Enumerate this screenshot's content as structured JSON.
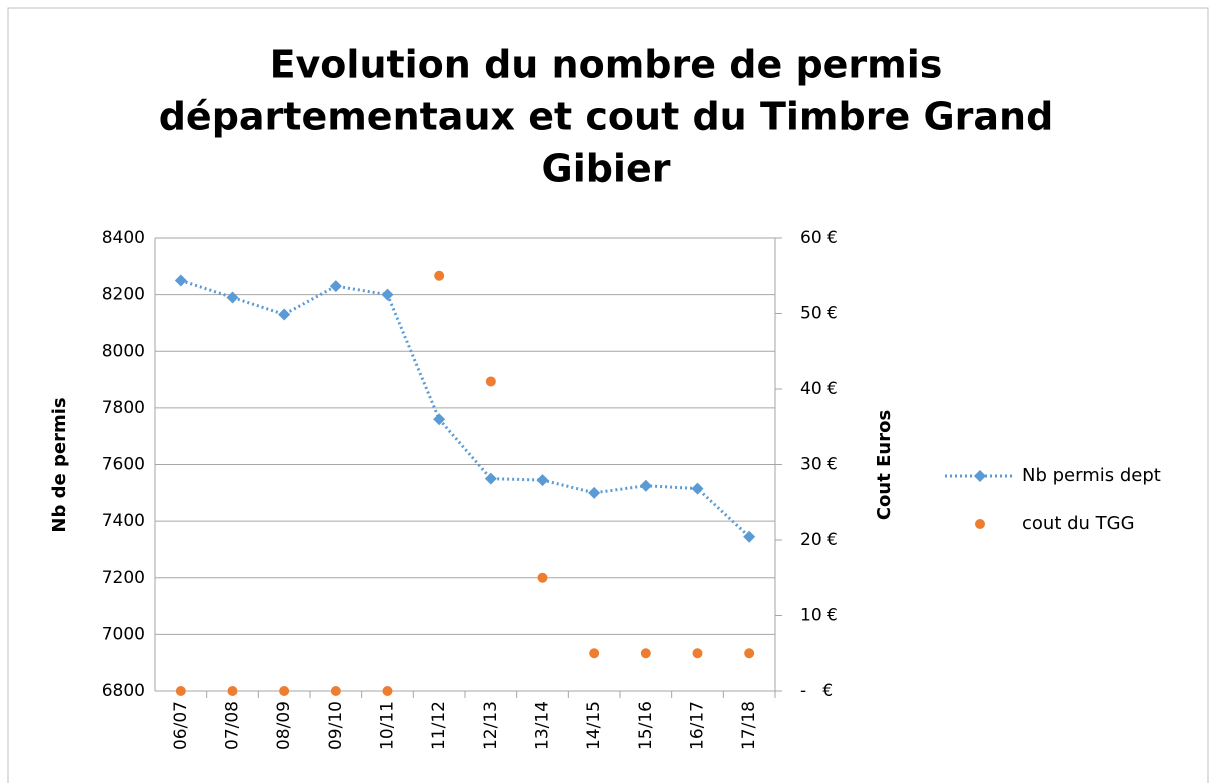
{
  "chart_data": {
    "type": "line",
    "title": [
      "Evolution du nombre de permis",
      "départementaux et cout du Timbre Grand",
      "Gibier"
    ],
    "ylabel": "Nb de permis",
    "y2label": "Cout Euros",
    "categories": [
      "06/07",
      "07/08",
      "08/09",
      "09/10",
      "10/11",
      "11/12",
      "12/13",
      "13/14",
      "14/15",
      "15/16",
      "16/17",
      "17/18"
    ],
    "series": [
      {
        "name": "Nb permis dept",
        "color": "#5b9bd5",
        "style": "dotted-line-diamond",
        "values": [
          8250,
          8190,
          8130,
          8230,
          8200,
          7760,
          7550,
          7545,
          7500,
          7525,
          7515,
          7345
        ]
      },
      {
        "name": "cout du TGG",
        "color": "#ed7d31",
        "style": "markers",
        "axis": "y2",
        "values": [
          0,
          0,
          0,
          0,
          0,
          55,
          41,
          15,
          5,
          5,
          5,
          5
        ]
      }
    ],
    "ylim": [
      6800,
      8400
    ],
    "yticks": [
      6800,
      7000,
      7200,
      7400,
      7600,
      7800,
      8000,
      8200,
      8400
    ],
    "y2lim": [
      0,
      60
    ],
    "y2ticks": [
      {
        "value": 0,
        "label": "-   €"
      },
      {
        "value": 10,
        "label": "10 €"
      },
      {
        "value": 20,
        "label": "20 €"
      },
      {
        "value": 30,
        "label": "30 €"
      },
      {
        "value": 40,
        "label": "40 €"
      },
      {
        "value": 50,
        "label": "50 €"
      },
      {
        "value": 60,
        "label": "60 €"
      }
    ],
    "grid": true,
    "legend": "right"
  }
}
